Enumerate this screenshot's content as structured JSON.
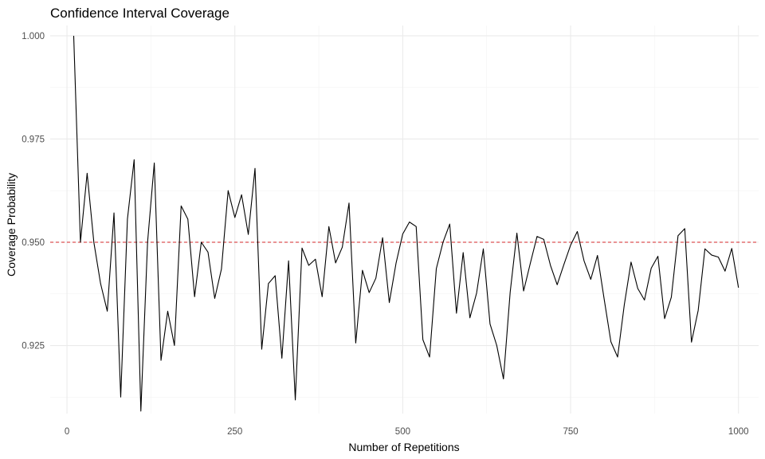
{
  "chart_data": {
    "type": "line",
    "title": "Confidence Interval Coverage",
    "xlabel": "Number of Repetitions",
    "ylabel": "Coverage Probability",
    "xlim": [
      -25,
      1030
    ],
    "ylim": [
      0.9085,
      1.0025
    ],
    "x_ticks": [
      0,
      250,
      500,
      750,
      1000
    ],
    "x_tick_labels": [
      "0",
      "250",
      "500",
      "750",
      "1000"
    ],
    "y_ticks": [
      0.925,
      0.95,
      0.975,
      1.0
    ],
    "y_tick_labels": [
      "0.925",
      "0.950",
      "0.975",
      "1.000"
    ],
    "grid": true,
    "reference_line": {
      "y": 0.95,
      "color": "#d62728",
      "style": "dashed"
    },
    "series": [
      {
        "color": "#000000",
        "x": [
          10,
          20,
          30,
          40,
          50,
          60,
          70,
          80,
          90,
          100,
          110,
          120,
          130,
          140,
          150,
          160,
          170,
          180,
          190,
          200,
          210,
          220,
          230,
          240,
          250,
          260,
          270,
          280,
          290,
          300,
          310,
          320,
          330,
          340,
          350,
          360,
          370,
          380,
          390,
          400,
          410,
          420,
          430,
          440,
          450,
          460,
          470,
          480,
          490,
          500,
          510,
          520,
          530,
          540,
          550,
          560,
          570,
          580,
          590,
          600,
          610,
          620,
          630,
          640,
          650,
          660,
          670,
          680,
          690,
          700,
          710,
          720,
          730,
          740,
          750,
          760,
          770,
          780,
          790,
          800,
          810,
          820,
          830,
          840,
          850,
          860,
          870,
          880,
          890,
          900,
          910,
          920,
          930,
          940,
          950,
          960,
          970,
          980,
          990,
          1000
        ],
        "values": [
          1.0,
          0.95,
          0.9667,
          0.95,
          0.94,
          0.9333,
          0.9571,
          0.9125,
          0.9556,
          0.97,
          0.9091,
          0.95,
          0.9692,
          0.9214,
          0.9333,
          0.925,
          0.9588,
          0.9556,
          0.9368,
          0.95,
          0.9476,
          0.9364,
          0.9435,
          0.9625,
          0.956,
          0.9615,
          0.9519,
          0.9679,
          0.9241,
          0.94,
          0.9419,
          0.9219,
          0.9455,
          0.9118,
          0.9486,
          0.9444,
          0.9459,
          0.9368,
          0.9538,
          0.945,
          0.9488,
          0.9595,
          0.9256,
          0.9432,
          0.9378,
          0.9413,
          0.9511,
          0.9354,
          0.9449,
          0.952,
          0.9549,
          0.9538,
          0.9264,
          0.9222,
          0.9436,
          0.95,
          0.9544,
          0.9328,
          0.9475,
          0.9317,
          0.9377,
          0.9484,
          0.9302,
          0.925,
          0.9169,
          0.9379,
          0.9522,
          0.9382,
          0.9449,
          0.9514,
          0.9507,
          0.9444,
          0.9397,
          0.9446,
          0.9493,
          0.9526,
          0.9455,
          0.941,
          0.9468,
          0.9362,
          0.9259,
          0.9222,
          0.9349,
          0.9452,
          0.9388,
          0.936,
          0.9437,
          0.9466,
          0.9315,
          0.9367,
          0.9516,
          0.9533,
          0.9258,
          0.9335,
          0.9484,
          0.9469,
          0.9464,
          0.943,
          0.9485,
          0.939
        ]
      }
    ]
  }
}
